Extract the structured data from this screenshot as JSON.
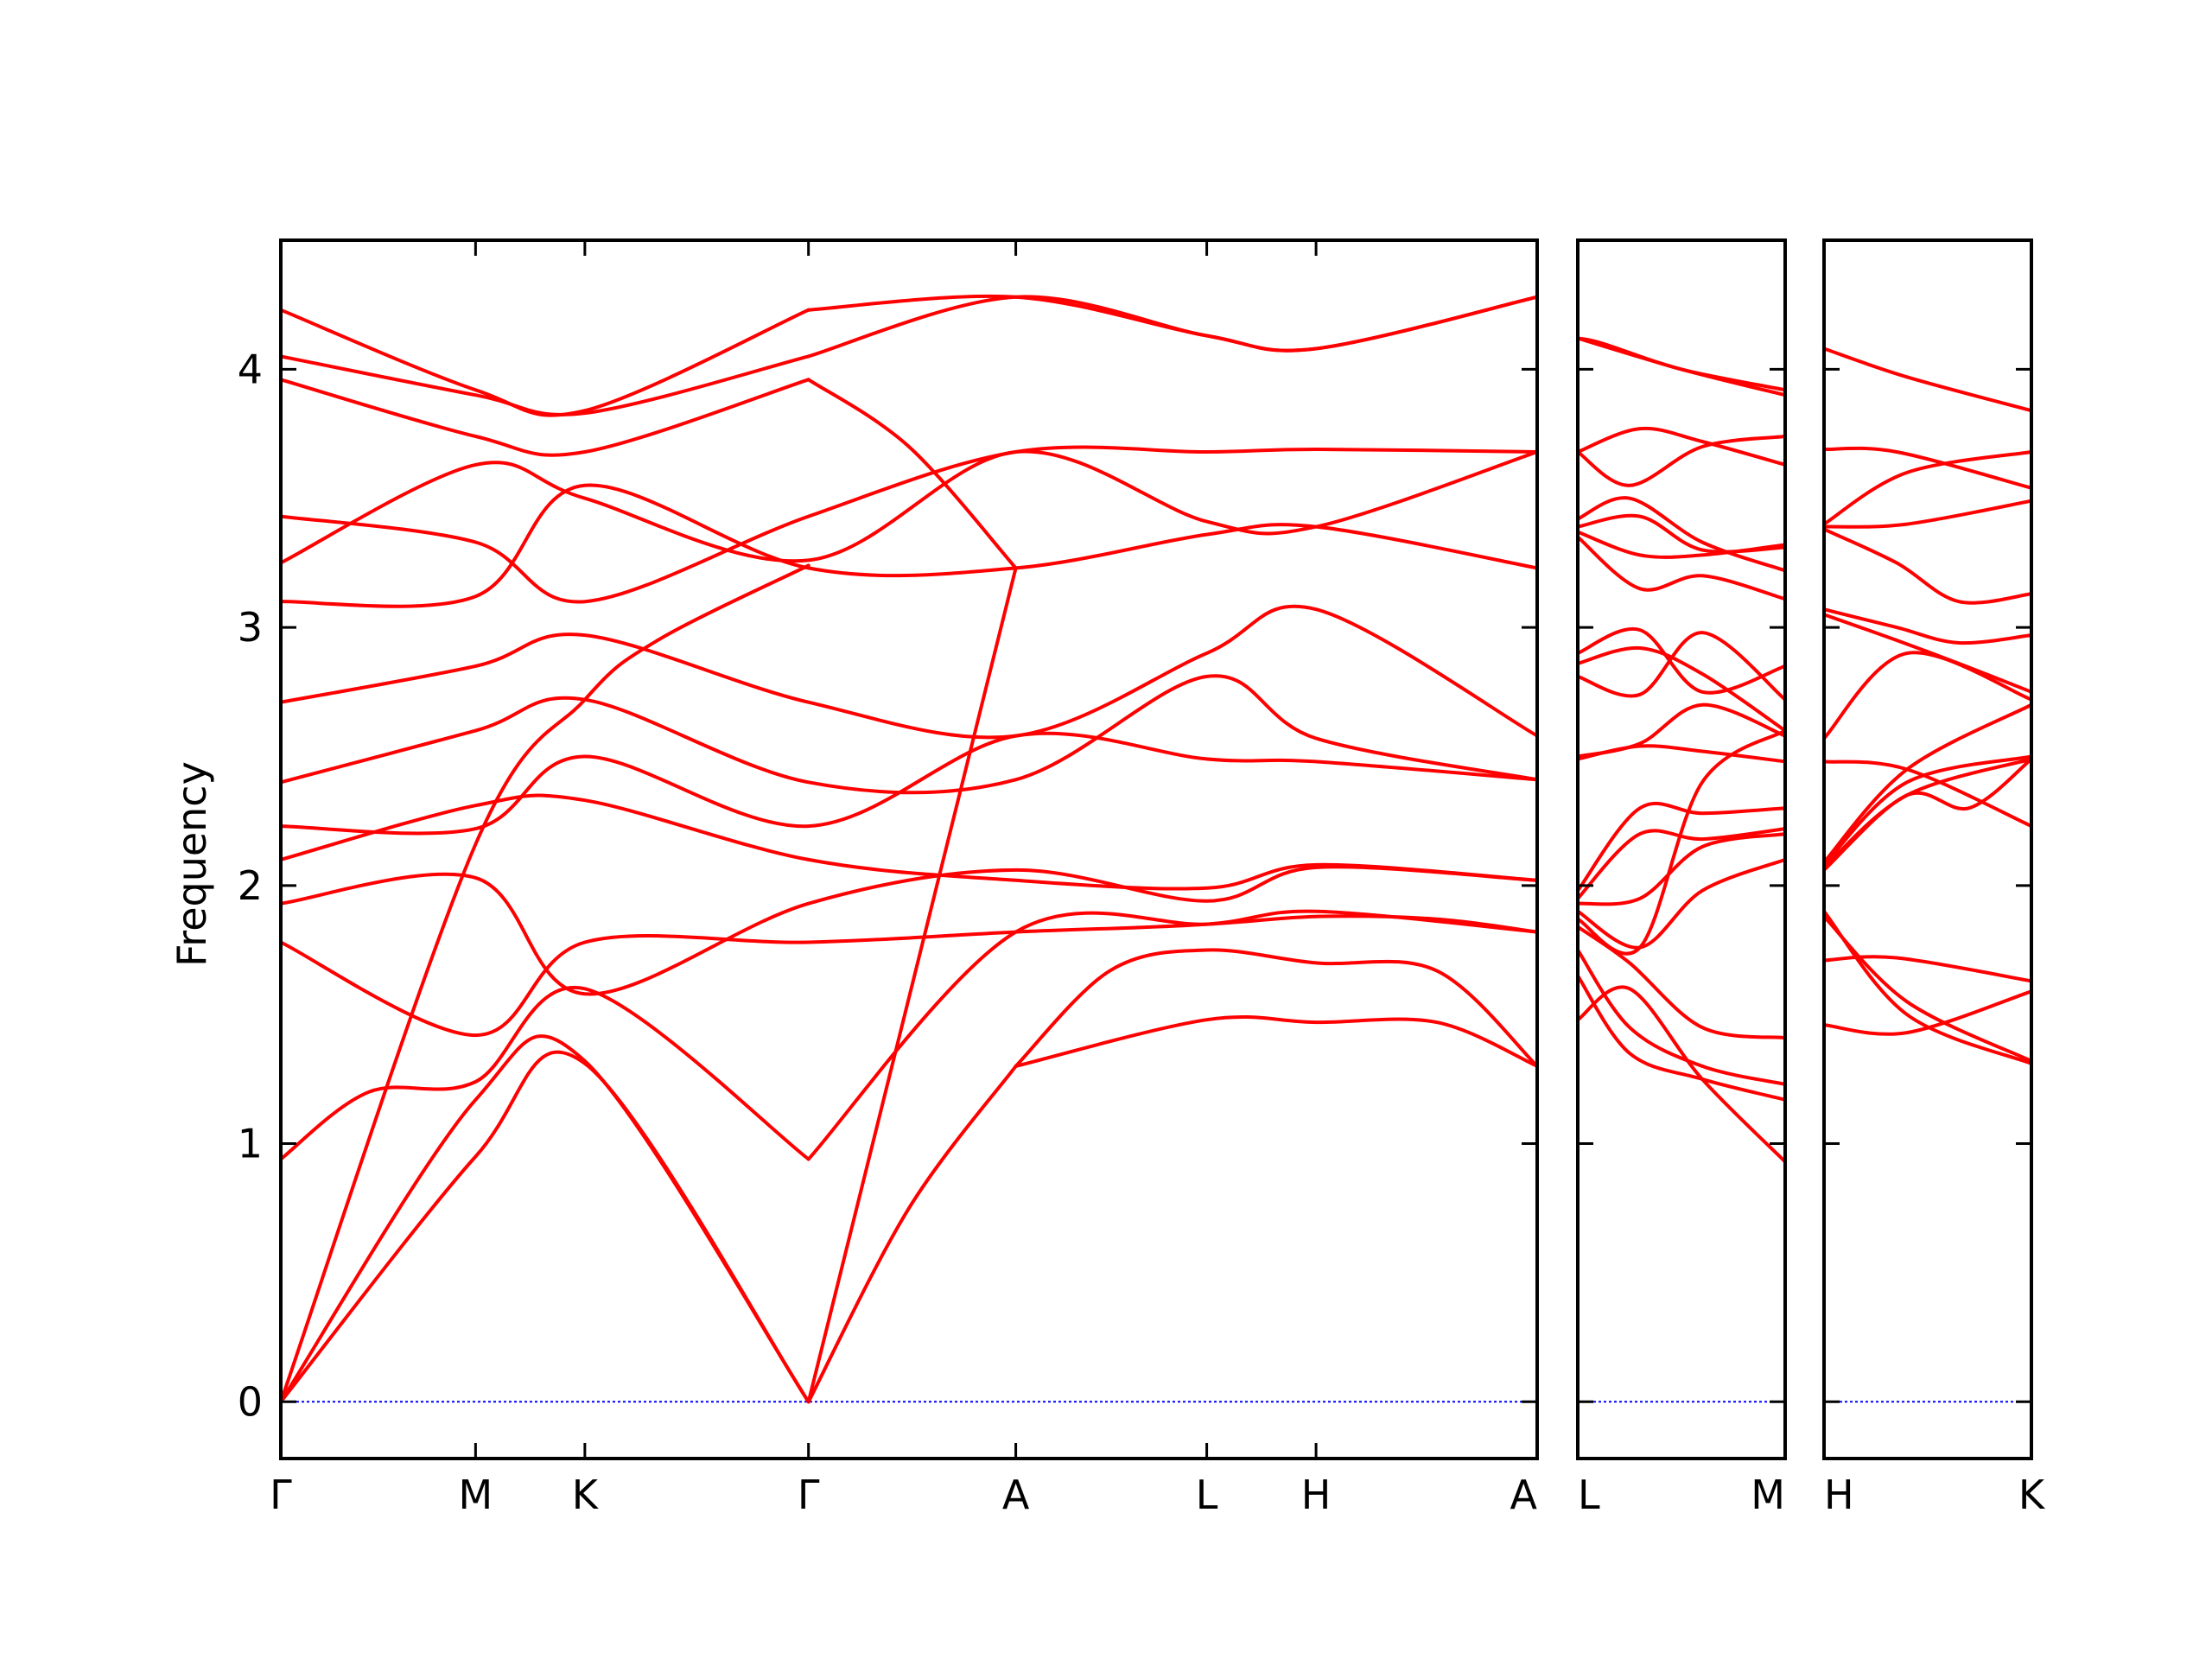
{
  "chart_data": {
    "type": "line",
    "title": "",
    "ylabel": "Frequency",
    "ylim": [
      -0.22,
      4.5
    ],
    "yticks": [
      0,
      1,
      2,
      3,
      4
    ],
    "grid": false,
    "colors": {
      "band": "#ff0000",
      "zero_line": "#0000ff",
      "frame": "#000000"
    },
    "panels": [
      {
        "x_labels": [
          "Γ",
          "M",
          "K",
          "Γ",
          "A",
          "L",
          "H",
          "A"
        ],
        "x_positions": [
          0.0,
          0.155,
          0.242,
          0.42,
          0.585,
          0.737,
          0.824,
          1.0
        ],
        "series": [
          {
            "x": [
              0,
              0.155,
              0.242,
              0.42
            ],
            "values": [
              0,
              0.95,
              1.31,
              0
            ]
          },
          {
            "x": [
              0,
              0.155,
              0.242,
              0.42
            ],
            "values": [
              0,
              1.17,
              1.32,
              0
            ]
          },
          {
            "x": [
              0,
              0.155,
              0.242,
              0.3,
              0.42
            ],
            "values": [
              0,
              2.16,
              2.72,
              2.95,
              3.24
            ]
          },
          {
            "x": [
              0,
              0.07,
              0.155,
              0.242,
              0.42
            ],
            "values": [
              0.94,
              1.2,
              1.24,
              1.6,
              0.94
            ]
          },
          {
            "x": [
              0.42,
              0.585
            ],
            "values": [
              0,
              3.23
            ]
          },
          {
            "x": [
              0.42,
              0.5,
              0.585
            ],
            "values": [
              0,
              0.75,
              1.3
            ]
          },
          {
            "x": [
              0.42,
              0.585,
              0.737,
              0.824,
              0.92,
              1.0
            ],
            "values": [
              0.94,
              1.82,
              1.85,
              1.88,
              1.87,
              1.82
            ]
          },
          {
            "x": [
              0.42,
              0.5,
              0.585
            ],
            "values": [
              3.96,
              3.7,
              3.23
            ]
          },
          {
            "x": [
              0.585,
              0.737,
              0.824,
              0.92,
              1.0
            ],
            "values": [
              1.3,
              1.48,
              1.47,
              1.47,
              1.3
            ]
          },
          {
            "x": [
              0.585,
              0.66,
              0.737,
              0.824,
              0.92,
              1.0
            ],
            "values": [
              1.3,
              1.67,
              1.75,
              1.7,
              1.67,
              1.3
            ]
          },
          {
            "x": [
              0,
              0.155,
              0.242,
              0.42
            ],
            "values": [
              4.23,
              3.92,
              3.84,
              4.23
            ]
          },
          {
            "x": [
              0,
              0.155,
              0.242,
              0.42
            ],
            "values": [
              4.05,
              3.9,
              3.83,
              4.05
            ]
          },
          {
            "x": [
              0,
              0.155,
              0.242,
              0.42
            ],
            "values": [
              3.96,
              3.74,
              3.68,
              3.96
            ]
          },
          {
            "x": [
              0.42,
              0.585,
              0.737,
              0.824,
              1.0
            ],
            "values": [
              4.23,
              4.28,
              4.13,
              4.08,
              4.28
            ]
          },
          {
            "x": [
              0.42,
              0.585,
              0.737,
              0.824,
              1.0
            ],
            "values": [
              4.05,
              4.28,
              4.13,
              4.08,
              4.28
            ]
          },
          {
            "x": [
              0,
              0.155,
              0.242,
              0.42,
              0.585,
              0.737,
              0.824,
              1.0
            ],
            "values": [
              3.43,
              3.33,
              3.1,
              3.43,
              3.68,
              3.68,
              3.69,
              3.68
            ]
          },
          {
            "x": [
              0,
              0.155,
              0.242,
              0.42,
              0.585,
              0.737,
              0.824,
              1.0
            ],
            "values": [
              3.25,
              3.63,
              3.5,
              3.26,
              3.68,
              3.41,
              3.39,
              3.68
            ]
          },
          {
            "x": [
              0,
              0.155,
              0.242,
              0.42,
              0.585,
              0.737,
              0.824,
              1.0
            ],
            "values": [
              3.1,
              3.12,
              3.55,
              3.23,
              3.23,
              3.36,
              3.39,
              3.23
            ]
          },
          {
            "x": [
              0,
              0.155,
              0.242,
              0.42,
              0.585,
              0.737,
              0.824,
              1.0
            ],
            "values": [
              2.71,
              2.85,
              2.97,
              2.71,
              2.58,
              2.9,
              3.07,
              2.58
            ]
          },
          {
            "x": [
              0,
              0.155,
              0.242,
              0.42,
              0.585,
              0.737,
              0.824,
              1.0
            ],
            "values": [
              2.4,
              2.6,
              2.72,
              2.4,
              2.41,
              2.81,
              2.57,
              2.41
            ]
          },
          {
            "x": [
              0,
              0.155,
              0.242,
              0.42,
              0.585,
              0.737,
              0.824,
              1.0
            ],
            "values": [
              2.23,
              2.22,
              2.5,
              2.23,
              2.58,
              2.49,
              2.48,
              2.41
            ]
          },
          {
            "x": [
              0,
              0.155,
              0.242,
              0.42,
              0.585,
              0.737,
              0.824,
              1.0
            ],
            "values": [
              2.1,
              2.31,
              2.33,
              2.1,
              2.02,
              1.99,
              2.08,
              2.02
            ]
          },
          {
            "x": [
              0,
              0.155,
              0.242,
              0.42,
              0.585,
              0.737,
              0.824,
              1.0
            ],
            "values": [
              1.93,
              2.03,
              1.58,
              1.93,
              2.06,
              1.94,
              2.07,
              2.02
            ]
          },
          {
            "x": [
              0,
              0.155,
              0.242,
              0.42,
              0.585,
              0.737,
              0.824,
              1.0
            ],
            "values": [
              1.78,
              1.42,
              1.78,
              1.78,
              1.82,
              1.85,
              1.9,
              1.82
            ]
          }
        ]
      },
      {
        "x_labels": [
          "L",
          "M"
        ],
        "x_positions": [
          0.0,
          1.0
        ],
        "series": [
          {
            "x": [
              0,
              0.12,
              0.5,
              1.0
            ],
            "values": [
              4.12,
              4.1,
              4.0,
              3.92
            ]
          },
          {
            "x": [
              0,
              0.5,
              1.0
            ],
            "values": [
              4.12,
              4.0,
              3.9
            ]
          },
          {
            "x": [
              0,
              0.3,
              0.6,
              1.0
            ],
            "values": [
              3.68,
              3.77,
              3.72,
              3.63
            ]
          },
          {
            "x": [
              0,
              0.25,
              0.6,
              1.0
            ],
            "values": [
              3.68,
              3.55,
              3.7,
              3.74
            ]
          },
          {
            "x": [
              0,
              0.25,
              0.6,
              1.0
            ],
            "values": [
              3.42,
              3.5,
              3.33,
              3.22
            ]
          },
          {
            "x": [
              0,
              0.3,
              0.6,
              1.0
            ],
            "values": [
              3.39,
              3.43,
              3.3,
              3.31
            ]
          },
          {
            "x": [
              0,
              0.3,
              0.6,
              1.0
            ],
            "values": [
              3.37,
              3.28,
              3.28,
              3.32
            ]
          },
          {
            "x": [
              0,
              0.3,
              0.6,
              1.0
            ],
            "values": [
              3.35,
              3.15,
              3.2,
              3.11
            ]
          },
          {
            "x": [
              0,
              0.3,
              0.6,
              1.0
            ],
            "values": [
              2.9,
              2.99,
              2.75,
              2.85
            ]
          },
          {
            "x": [
              0,
              0.3,
              0.6,
              1.0
            ],
            "values": [
              2.86,
              2.92,
              2.82,
              2.6
            ]
          },
          {
            "x": [
              0,
              0.3,
              0.6,
              1.0
            ],
            "values": [
              2.81,
              2.74,
              2.98,
              2.72
            ]
          },
          {
            "x": [
              0,
              0.3,
              0.6,
              1.0
            ],
            "values": [
              2.5,
              2.55,
              2.7,
              2.58
            ]
          },
          {
            "x": [
              0,
              0.3,
              0.6,
              1.0
            ],
            "values": [
              2.49,
              2.54,
              2.52,
              2.48
            ]
          },
          {
            "x": [
              0,
              0.3,
              0.6,
              1.0
            ],
            "values": [
              1.98,
              2.3,
              2.28,
              2.3
            ]
          },
          {
            "x": [
              0,
              0.3,
              0.6,
              1.0
            ],
            "values": [
              1.95,
              2.2,
              2.18,
              2.22
            ]
          },
          {
            "x": [
              0,
              0.3,
              0.6,
              1.0
            ],
            "values": [
              1.93,
              1.95,
              2.15,
              2.2
            ]
          },
          {
            "x": [
              0,
              0.3,
              0.6,
              1.0
            ],
            "values": [
              1.9,
              1.76,
              1.98,
              2.1
            ]
          },
          {
            "x": [
              0,
              0.3,
              0.6,
              1.0
            ],
            "values": [
              1.87,
              1.76,
              2.4,
              2.6
            ]
          },
          {
            "x": [
              0,
              0.25,
              0.6,
              1.0
            ],
            "values": [
              1.84,
              1.7,
              1.45,
              1.41
            ]
          },
          {
            "x": [
              0,
              0.25,
              0.6,
              1.0
            ],
            "values": [
              1.75,
              1.45,
              1.3,
              1.23
            ]
          },
          {
            "x": [
              0,
              0.25,
              0.6,
              1.0
            ],
            "values": [
              1.65,
              1.35,
              1.25,
              1.17
            ]
          },
          {
            "x": [
              0,
              0.25,
              0.6,
              1.0
            ],
            "values": [
              1.48,
              1.6,
              1.25,
              0.93
            ]
          }
        ]
      },
      {
        "x_labels": [
          "H",
          "K"
        ],
        "x_positions": [
          0.0,
          1.0
        ],
        "series": [
          {
            "x": [
              0,
              0.4,
              1.0
            ],
            "values": [
              4.08,
              3.97,
              3.84
            ]
          },
          {
            "x": [
              0,
              0.35,
              1.0
            ],
            "values": [
              3.69,
              3.68,
              3.54
            ]
          },
          {
            "x": [
              0,
              0.4,
              1.0
            ],
            "values": [
              3.4,
              3.6,
              3.68
            ]
          },
          {
            "x": [
              0,
              0.4,
              1.0
            ],
            "values": [
              3.39,
              3.4,
              3.49
            ]
          },
          {
            "x": [
              0,
              0.35,
              0.65,
              1.0
            ],
            "values": [
              3.38,
              3.25,
              3.1,
              3.13
            ]
          },
          {
            "x": [
              0,
              0.35,
              0.65,
              1.0
            ],
            "values": [
              3.07,
              3.0,
              2.94,
              2.97
            ]
          },
          {
            "x": [
              0,
              0.35,
              0.65,
              1.0
            ],
            "values": [
              3.05,
              2.95,
              2.86,
              2.75
            ]
          },
          {
            "x": [
              0,
              0.4,
              1.0
            ],
            "values": [
              2.57,
              2.9,
              2.72
            ]
          },
          {
            "x": [
              0,
              0.4,
              1.0
            ],
            "values": [
              2.48,
              2.45,
              2.23
            ]
          },
          {
            "x": [
              0,
              0.4,
              1.0
            ],
            "values": [
              2.09,
              2.45,
              2.7
            ]
          },
          {
            "x": [
              0,
              0.4,
              1.0
            ],
            "values": [
              2.08,
              2.4,
              2.5
            ]
          },
          {
            "x": [
              0,
              0.4,
              1.0
            ],
            "values": [
              2.07,
              2.35,
              2.49
            ]
          },
          {
            "x": [
              0,
              0.4,
              0.7,
              1.0
            ],
            "values": [
              2.06,
              2.35,
              2.3,
              2.49
            ]
          },
          {
            "x": [
              0,
              0.4,
              1.0
            ],
            "values": [
              1.9,
              1.5,
              1.31
            ]
          },
          {
            "x": [
              0,
              0.4,
              1.0
            ],
            "values": [
              1.88,
              1.55,
              1.32
            ]
          },
          {
            "x": [
              0,
              0.35,
              1.0
            ],
            "values": [
              1.71,
              1.72,
              1.63
            ]
          },
          {
            "x": [
              0,
              0.4,
              1.0
            ],
            "values": [
              1.46,
              1.43,
              1.59
            ]
          }
        ]
      }
    ]
  }
}
